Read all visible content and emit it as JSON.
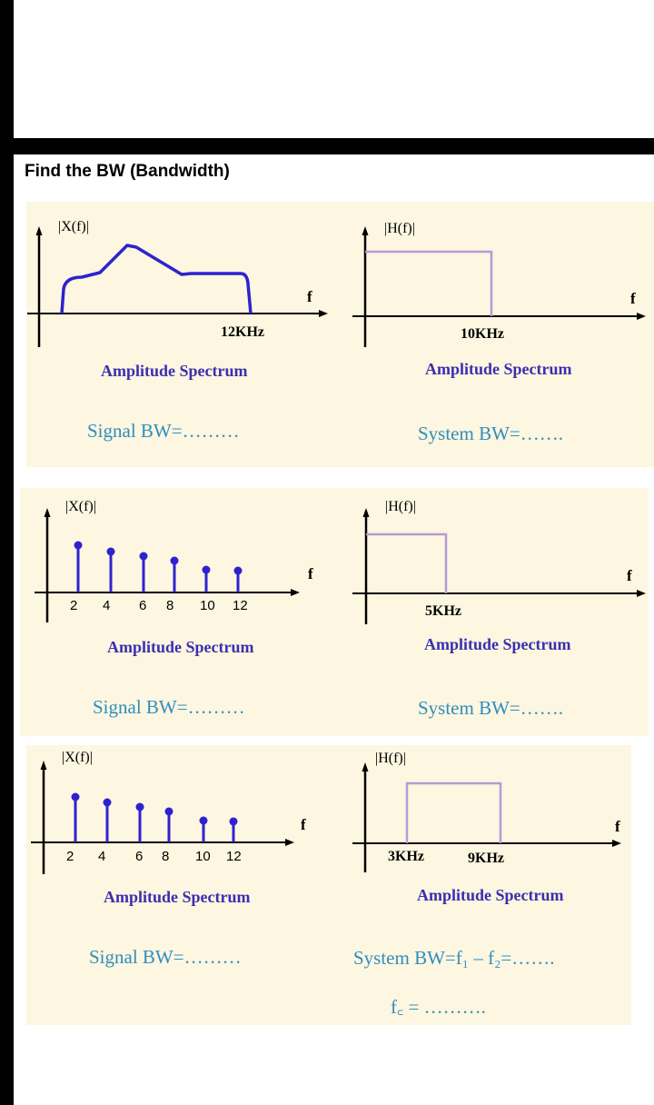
{
  "title": "Find the BW (Bandwidth)",
  "colors": {
    "signal": "#2e22cf",
    "system": "#b59ad8",
    "caption": "#3a2fb0",
    "bw_text": "#2f8ec0",
    "panel": "#fdf6e0"
  },
  "rows": [
    {
      "signal": {
        "ylabel": "|X(f)|",
        "xlabel": "f",
        "freq_label": "12KHz",
        "caption": "Amplitude Spectrum",
        "bw": "Signal BW=………"
      },
      "system": {
        "ylabel": "|H(f)|",
        "xlabel": "f",
        "freq_label": "10KHz",
        "caption": "Amplitude Spectrum",
        "bw": "System BW=……."
      }
    },
    {
      "signal": {
        "ylabel": "|X(f)|",
        "xlabel": "f",
        "ticks": [
          "2",
          "4",
          "6",
          "8",
          "10",
          "12"
        ],
        "caption": "Amplitude Spectrum",
        "bw": "Signal BW=………"
      },
      "system": {
        "ylabel": "|H(f)|",
        "xlabel": "f",
        "freq_label": "5KHz",
        "caption": "Amplitude Spectrum",
        "bw": "System BW=……."
      }
    },
    {
      "signal": {
        "ylabel": "|X(f)|",
        "xlabel": "f",
        "ticks": [
          "2",
          "4",
          "6",
          "8",
          "10",
          "12"
        ],
        "caption": "Amplitude Spectrum",
        "bw": "Signal BW=………"
      },
      "system": {
        "ylabel": "|H(f)|",
        "xlabel": "f",
        "freq_low": "3KHz",
        "freq_high": "9KHz",
        "caption": "Amplitude Spectrum",
        "bw": "System BW=f₁ – f₂=…….",
        "fc": "f꜀ = ………."
      }
    }
  ]
}
